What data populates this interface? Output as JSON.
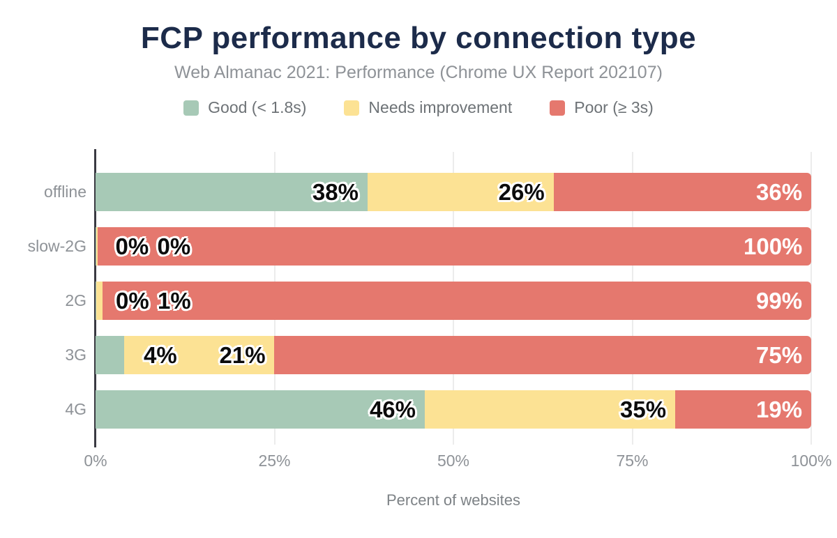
{
  "title": "FCP performance by connection type",
  "subtitle": "Web Almanac 2021: Performance (Chrome UX Report 202107)",
  "colors": {
    "good": "#a7c9b6",
    "needs_improvement": "#fce294",
    "poor": "#e5786e",
    "title_text": "#1c2b4a",
    "muted_text": "#8e9297"
  },
  "legend": [
    {
      "label": "Good (< 1.8s)",
      "color": "#a7c9b6"
    },
    {
      "label": "Needs improvement",
      "color": "#fce294"
    },
    {
      "label": "Poor (≥ 3s)",
      "color": "#e5786e"
    }
  ],
  "chart_data": {
    "type": "bar",
    "orientation": "horizontal-stacked",
    "title": "FCP performance by connection type",
    "subtitle": "Web Almanac 2021: Performance (Chrome UX Report 202107)",
    "categories": [
      "offline",
      "slow-2G",
      "2G",
      "3G",
      "4G"
    ],
    "series": [
      {
        "name": "Good (< 1.8s)",
        "key": "good",
        "color": "#a7c9b6",
        "values": [
          38,
          0.05,
          0.1,
          4,
          46
        ],
        "labels": [
          "38%",
          "0%",
          "0%",
          "4%",
          "46%"
        ],
        "label_style": "dark"
      },
      {
        "name": "Needs improvement",
        "key": "needs-improvement",
        "color": "#fce294",
        "values": [
          26,
          0.2,
          0.9,
          21,
          35
        ],
        "labels": [
          "26%",
          "0%",
          "1%",
          "21%",
          "35%"
        ],
        "label_style": "dark"
      },
      {
        "name": "Poor (≥ 3s)",
        "key": "poor",
        "color": "#e5786e",
        "values": [
          36,
          99.75,
          99,
          75,
          19
        ],
        "labels": [
          "36%",
          "100%",
          "99%",
          "75%",
          "19%"
        ],
        "label_style": "light"
      }
    ],
    "xlabel": "Percent of websites",
    "x_ticks": [
      {
        "label": "0%",
        "value": 0
      },
      {
        "label": "25%",
        "value": 25
      },
      {
        "label": "50%",
        "value": 50
      },
      {
        "label": "75%",
        "value": 75
      },
      {
        "label": "100%",
        "value": 100
      }
    ],
    "xlim": [
      0,
      100
    ],
    "grid": "vertical",
    "legend_position": "top"
  }
}
